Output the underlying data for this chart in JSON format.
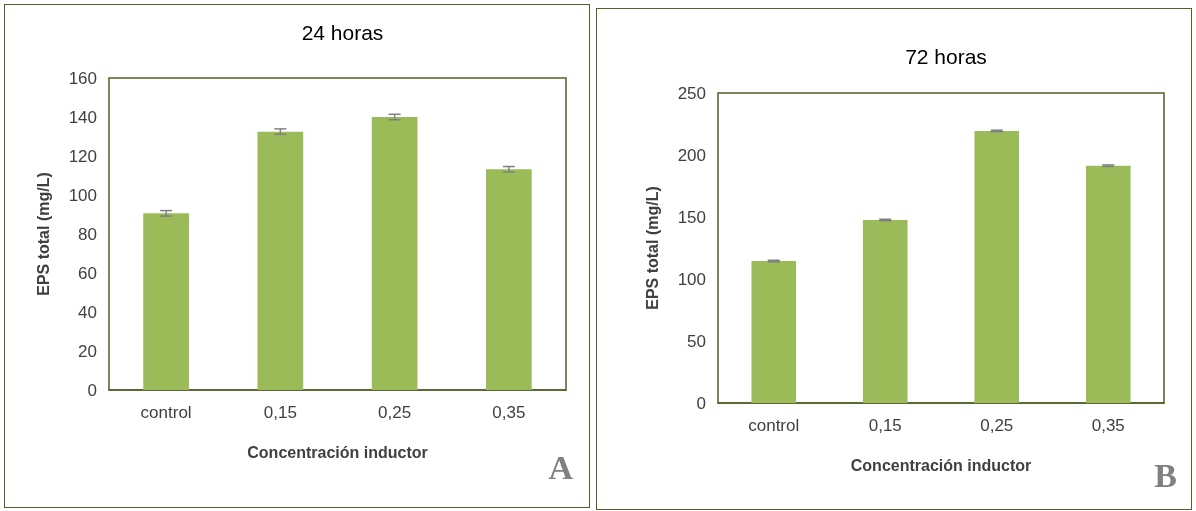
{
  "chart_data": [
    {
      "type": "bar",
      "title": "24 horas",
      "xlabel": "Concentración inductor",
      "ylabel": "EPS total (mg/L)",
      "categories": [
        "control",
        "0,15",
        "0,25",
        "0,35"
      ],
      "values": [
        90.6,
        132.5,
        140,
        113.2
      ],
      "errors": [
        1.4,
        1.4,
        1.4,
        1.4
      ],
      "color": "#9bbb59",
      "ylim": [
        0,
        160
      ],
      "yticks": [
        0,
        20,
        40,
        60,
        80,
        100,
        120,
        140,
        160
      ],
      "grid": false,
      "annotations": [
        "A"
      ]
    },
    {
      "type": "bar",
      "title": "72 horas",
      "xlabel": "Concentración inductor",
      "ylabel": "EPS total (mg/L)",
      "categories": [
        "control",
        "0,15",
        "0,25",
        "0,35"
      ],
      "values": [
        114.5,
        147.6,
        219.4,
        191.4
      ],
      "errors": [
        0.6,
        0.6,
        0.6,
        0.6
      ],
      "color": "#9bbb59",
      "ylim": [
        0,
        250
      ],
      "yticks": [
        0,
        50,
        100,
        150,
        200,
        250
      ],
      "grid": false,
      "annotations": [
        "B"
      ]
    }
  ]
}
